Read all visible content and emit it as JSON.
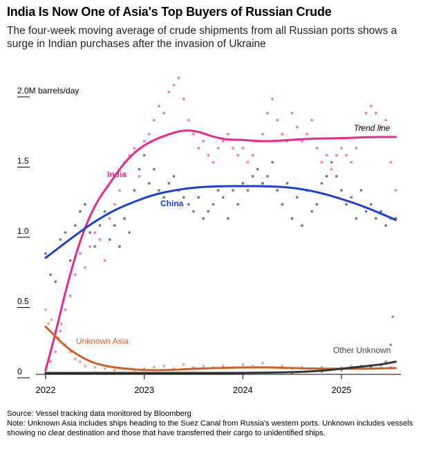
{
  "title": "India Is Now One of Asia's Top Buyers of Russian Crude",
  "subtitle": "The four-week moving average of crude shipments from all Russian ports shows a surge in Indian purchases after the invasion of Ukraine",
  "source": "Source: Vessel tracking data monitored by Bloomberg",
  "note": "Note: Unknown Asia includes ships heading to the Suez Canal from Russia's western ports. Unknown includes vessels showing no clear destination and those that have transferred their cargo to unidentified ships.",
  "colors": {
    "india": "#e8288a",
    "india_dots": "#f06bb0",
    "china": "#1a3ed6",
    "china_dots": "#5a6894",
    "unknown_asia": "#d0602a",
    "unknown_asia_dots": "#f0a070",
    "other_unknown": "#333333",
    "other_unknown_dots": "#888888",
    "axis": "#000000"
  },
  "chart_data": {
    "type": "scatter",
    "y_unit_label": "2.0M barrels/day",
    "y_ticks": [
      {
        "value": 0,
        "label": "0"
      },
      {
        "value": 0.5,
        "label": "0.5"
      },
      {
        "value": 1.0,
        "label": "1.0"
      },
      {
        "value": 1.5,
        "label": "1.5"
      },
      {
        "value": 2.0,
        "label": "2.0M barrels/day"
      }
    ],
    "x_ticks": [
      {
        "value": 2022,
        "label": "2022"
      },
      {
        "value": 2023,
        "label": "2023"
      },
      {
        "value": 2024,
        "label": "2024"
      },
      {
        "value": 2025,
        "label": "2025"
      }
    ],
    "xlim": [
      2022,
      2025.55
    ],
    "ylim": [
      0,
      2.0
    ],
    "trend_line_label": "Trend line",
    "series": [
      {
        "name": "India",
        "key": "india",
        "trend": [
          [
            2022.0,
            0.02
          ],
          [
            2022.1,
            0.28
          ],
          [
            2022.2,
            0.58
          ],
          [
            2022.35,
            0.95
          ],
          [
            2022.5,
            1.2
          ],
          [
            2022.65,
            1.35
          ],
          [
            2022.8,
            1.5
          ],
          [
            2022.95,
            1.6
          ],
          [
            2023.1,
            1.66
          ],
          [
            2023.25,
            1.7
          ],
          [
            2023.4,
            1.73
          ],
          [
            2023.55,
            1.72
          ],
          [
            2023.7,
            1.68
          ],
          [
            2023.85,
            1.66
          ],
          [
            2024.0,
            1.66
          ],
          [
            2024.15,
            1.65
          ],
          [
            2024.3,
            1.65
          ],
          [
            2024.5,
            1.66
          ],
          [
            2024.75,
            1.67
          ],
          [
            2025.0,
            1.67
          ],
          [
            2025.25,
            1.68
          ],
          [
            2025.55,
            1.68
          ]
        ],
        "points": [
          [
            2022.0,
            0.02
          ],
          [
            2022.05,
            0.08
          ],
          [
            2022.1,
            0.15
          ],
          [
            2022.15,
            0.3
          ],
          [
            2022.2,
            0.45
          ],
          [
            2022.25,
            0.55
          ],
          [
            2022.3,
            0.7
          ],
          [
            2022.35,
            0.85
          ],
          [
            2022.4,
            0.75
          ],
          [
            2022.45,
            0.9
          ],
          [
            2022.5,
            1.0
          ],
          [
            2022.55,
            0.95
          ],
          [
            2022.6,
            0.8
          ],
          [
            2022.65,
            1.1
          ],
          [
            2022.7,
            1.2
          ],
          [
            2022.75,
            1.3
          ],
          [
            2022.8,
            1.5
          ],
          [
            2022.85,
            1.55
          ],
          [
            2022.9,
            1.6
          ],
          [
            2022.95,
            1.4
          ],
          [
            2023.0,
            1.65
          ],
          [
            2023.05,
            1.7
          ],
          [
            2023.1,
            1.8
          ],
          [
            2023.15,
            1.9
          ],
          [
            2023.2,
            1.85
          ],
          [
            2023.25,
            2.0
          ],
          [
            2023.3,
            2.05
          ],
          [
            2023.35,
            2.1
          ],
          [
            2023.4,
            1.95
          ],
          [
            2023.45,
            1.8
          ],
          [
            2023.5,
            1.7
          ],
          [
            2023.55,
            1.6
          ],
          [
            2023.6,
            1.65
          ],
          [
            2023.65,
            1.55
          ],
          [
            2023.7,
            1.5
          ],
          [
            2023.75,
            1.6
          ],
          [
            2023.8,
            1.65
          ],
          [
            2023.85,
            1.7
          ],
          [
            2023.9,
            1.6
          ],
          [
            2023.95,
            1.55
          ],
          [
            2024.0,
            1.6
          ],
          [
            2024.05,
            1.5
          ],
          [
            2024.1,
            1.55
          ],
          [
            2024.15,
            1.65
          ],
          [
            2024.2,
            1.7
          ],
          [
            2024.25,
            1.85
          ],
          [
            2024.3,
            1.95
          ],
          [
            2024.35,
            1.8
          ],
          [
            2024.4,
            1.7
          ],
          [
            2024.45,
            1.65
          ],
          [
            2024.5,
            1.85
          ],
          [
            2024.55,
            1.75
          ],
          [
            2024.6,
            1.65
          ],
          [
            2024.65,
            1.7
          ],
          [
            2024.7,
            1.8
          ],
          [
            2024.75,
            1.6
          ],
          [
            2024.8,
            1.5
          ],
          [
            2024.85,
            1.55
          ],
          [
            2024.9,
            1.45
          ],
          [
            2024.95,
            1.55
          ],
          [
            2025.0,
            1.6
          ],
          [
            2025.05,
            1.55
          ],
          [
            2025.1,
            1.5
          ],
          [
            2025.15,
            1.6
          ],
          [
            2025.2,
            1.75
          ],
          [
            2025.25,
            1.85
          ],
          [
            2025.3,
            1.9
          ],
          [
            2025.35,
            1.85
          ],
          [
            2025.4,
            1.75
          ],
          [
            2025.45,
            1.8
          ],
          [
            2025.5,
            1.5
          ],
          [
            2025.55,
            1.3
          ]
        ]
      },
      {
        "name": "China",
        "key": "china",
        "trend": [
          [
            2022.0,
            0.82
          ],
          [
            2022.15,
            0.9
          ],
          [
            2022.3,
            0.98
          ],
          [
            2022.5,
            1.08
          ],
          [
            2022.7,
            1.16
          ],
          [
            2022.9,
            1.22
          ],
          [
            2023.1,
            1.27
          ],
          [
            2023.3,
            1.3
          ],
          [
            2023.5,
            1.32
          ],
          [
            2023.75,
            1.33
          ],
          [
            2024.0,
            1.33
          ],
          [
            2024.25,
            1.33
          ],
          [
            2024.5,
            1.32
          ],
          [
            2024.75,
            1.29
          ],
          [
            2025.0,
            1.24
          ],
          [
            2025.25,
            1.18
          ],
          [
            2025.55,
            1.09
          ]
        ],
        "points": [
          [
            2022.0,
            0.85
          ],
          [
            2022.05,
            0.7
          ],
          [
            2022.1,
            0.65
          ],
          [
            2022.15,
            0.95
          ],
          [
            2022.2,
            1.0
          ],
          [
            2022.25,
            0.8
          ],
          [
            2022.3,
            1.05
          ],
          [
            2022.35,
            1.15
          ],
          [
            2022.4,
            1.2
          ],
          [
            2022.45,
            1.0
          ],
          [
            2022.5,
            0.9
          ],
          [
            2022.55,
            1.05
          ],
          [
            2022.6,
            1.15
          ],
          [
            2022.65,
            0.95
          ],
          [
            2022.7,
            1.05
          ],
          [
            2022.75,
            0.9
          ],
          [
            2022.8,
            1.1
          ],
          [
            2022.85,
            1.0
          ],
          [
            2022.9,
            1.3
          ],
          [
            2022.95,
            1.45
          ],
          [
            2023.0,
            1.55
          ],
          [
            2023.05,
            1.35
          ],
          [
            2023.1,
            1.45
          ],
          [
            2023.15,
            1.3
          ],
          [
            2023.2,
            1.25
          ],
          [
            2023.25,
            1.35
          ],
          [
            2023.3,
            1.4
          ],
          [
            2023.35,
            1.3
          ],
          [
            2023.4,
            1.25
          ],
          [
            2023.45,
            1.2
          ],
          [
            2023.5,
            1.15
          ],
          [
            2023.55,
            1.25
          ],
          [
            2023.6,
            1.1
          ],
          [
            2023.65,
            1.15
          ],
          [
            2023.7,
            1.2
          ],
          [
            2023.75,
            1.3
          ],
          [
            2023.8,
            1.25
          ],
          [
            2023.85,
            1.1
          ],
          [
            2023.9,
            1.3
          ],
          [
            2023.95,
            1.2
          ],
          [
            2024.0,
            1.35
          ],
          [
            2024.05,
            1.3
          ],
          [
            2024.1,
            1.4
          ],
          [
            2024.15,
            1.45
          ],
          [
            2024.2,
            1.35
          ],
          [
            2024.25,
            1.4
          ],
          [
            2024.3,
            1.5
          ],
          [
            2024.35,
            1.3
          ],
          [
            2024.4,
            1.2
          ],
          [
            2024.45,
            1.35
          ],
          [
            2024.5,
            1.1
          ],
          [
            2024.55,
            1.25
          ],
          [
            2024.6,
            1.05
          ],
          [
            2024.65,
            1.3
          ],
          [
            2024.7,
            1.15
          ],
          [
            2024.75,
            1.2
          ],
          [
            2024.8,
            1.35
          ],
          [
            2024.85,
            1.4
          ],
          [
            2024.9,
            1.5
          ],
          [
            2024.95,
            1.4
          ],
          [
            2025.0,
            1.3
          ],
          [
            2025.05,
            1.2
          ],
          [
            2025.1,
            1.25
          ],
          [
            2025.15,
            1.1
          ],
          [
            2025.2,
            1.3
          ],
          [
            2025.25,
            1.15
          ],
          [
            2025.3,
            1.2
          ],
          [
            2025.35,
            1.1
          ],
          [
            2025.4,
            1.15
          ],
          [
            2025.45,
            1.05
          ],
          [
            2025.5,
            1.1
          ],
          [
            2025.55,
            1.1
          ]
        ]
      },
      {
        "name": "Unknown Asia",
        "key": "unknown_asia",
        "trend": [
          [
            2022.0,
            0.33
          ],
          [
            2022.1,
            0.26
          ],
          [
            2022.2,
            0.19
          ],
          [
            2022.3,
            0.14
          ],
          [
            2022.45,
            0.08
          ],
          [
            2022.6,
            0.05
          ],
          [
            2022.8,
            0.03
          ],
          [
            2023.0,
            0.02
          ],
          [
            2023.25,
            0.02
          ],
          [
            2023.5,
            0.03
          ],
          [
            2023.75,
            0.035
          ],
          [
            2024.0,
            0.04
          ],
          [
            2024.25,
            0.04
          ],
          [
            2024.5,
            0.035
          ],
          [
            2024.75,
            0.03
          ],
          [
            2025.0,
            0.03
          ],
          [
            2025.25,
            0.03
          ],
          [
            2025.55,
            0.035
          ]
        ],
        "points": [
          [
            2022.0,
            0.45
          ],
          [
            2022.03,
            0.35
          ],
          [
            2022.06,
            0.38
          ],
          [
            2022.1,
            0.3
          ],
          [
            2022.13,
            0.25
          ],
          [
            2022.16,
            0.35
          ],
          [
            2022.2,
            0.2
          ],
          [
            2022.25,
            0.15
          ],
          [
            2022.3,
            0.1
          ],
          [
            2022.35,
            0.08
          ],
          [
            2022.4,
            0.05
          ],
          [
            2022.5,
            0.04
          ],
          [
            2022.6,
            0.03
          ],
          [
            2022.7,
            0.02
          ],
          [
            2022.8,
            0.03
          ],
          [
            2022.9,
            0.02
          ],
          [
            2023.0,
            0.03
          ],
          [
            2023.1,
            0.04
          ],
          [
            2023.2,
            0.05
          ],
          [
            2023.3,
            0.03
          ],
          [
            2023.4,
            0.06
          ],
          [
            2023.5,
            0.04
          ],
          [
            2023.6,
            0.05
          ],
          [
            2023.7,
            0.04
          ],
          [
            2023.8,
            0.05
          ],
          [
            2023.9,
            0.04
          ],
          [
            2024.0,
            0.06
          ],
          [
            2024.1,
            0.05
          ],
          [
            2024.2,
            0.07
          ],
          [
            2024.3,
            0.04
          ],
          [
            2024.4,
            0.05
          ],
          [
            2024.5,
            0.03
          ],
          [
            2024.6,
            0.04
          ],
          [
            2024.7,
            0.03
          ],
          [
            2024.8,
            0.04
          ],
          [
            2024.9,
            0.03
          ],
          [
            2025.0,
            0.04
          ],
          [
            2025.1,
            0.05
          ],
          [
            2025.2,
            0.04
          ],
          [
            2025.3,
            0.03
          ],
          [
            2025.4,
            0.05
          ],
          [
            2025.5,
            0.04
          ]
        ]
      },
      {
        "name": "Other Unknown",
        "key": "other_unknown",
        "trend": [
          [
            2022.0,
            0.0
          ],
          [
            2022.5,
            0.0
          ],
          [
            2023.0,
            0.0
          ],
          [
            2023.5,
            0.0
          ],
          [
            2024.0,
            0.0
          ],
          [
            2024.5,
            0.005
          ],
          [
            2024.8,
            0.015
          ],
          [
            2025.0,
            0.03
          ],
          [
            2025.2,
            0.045
          ],
          [
            2025.4,
            0.06
          ],
          [
            2025.55,
            0.08
          ]
        ],
        "points": [
          [
            2022.0,
            0.0
          ],
          [
            2022.5,
            0.0
          ],
          [
            2023.0,
            0.0
          ],
          [
            2023.5,
            0.0
          ],
          [
            2024.0,
            0.0
          ],
          [
            2024.5,
            0.0
          ],
          [
            2024.8,
            0.01
          ],
          [
            2025.0,
            0.02
          ],
          [
            2025.1,
            0.03
          ],
          [
            2025.2,
            0.05
          ],
          [
            2025.3,
            0.04
          ],
          [
            2025.4,
            0.06
          ],
          [
            2025.45,
            0.08
          ],
          [
            2025.5,
            0.2
          ],
          [
            2025.52,
            0.4
          ]
        ]
      }
    ]
  }
}
